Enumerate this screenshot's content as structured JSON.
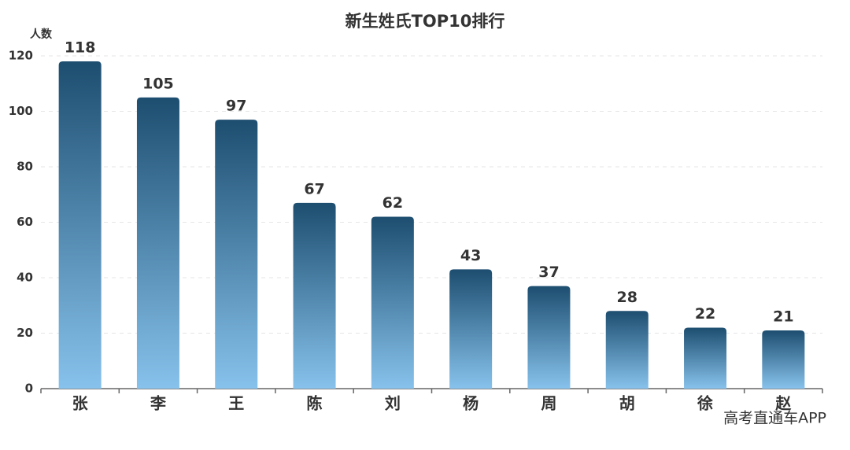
{
  "chart_data": {
    "type": "bar",
    "title": "新生姓氏TOP10排行",
    "y_label": "人数",
    "categories": [
      "张",
      "李",
      "王",
      "陈",
      "刘",
      "杨",
      "周",
      "胡",
      "徐",
      "赵"
    ],
    "values": [
      118,
      105,
      97,
      67,
      62,
      43,
      37,
      28,
      22,
      21
    ],
    "color": [
      "#1d4e70",
      "#87c2ec"
    ],
    "ylim": [
      0,
      120
    ],
    "yticks": [
      0,
      20,
      40,
      60,
      80,
      100,
      120
    ],
    "grid": true
  },
  "watermark": "高考直通车APP"
}
